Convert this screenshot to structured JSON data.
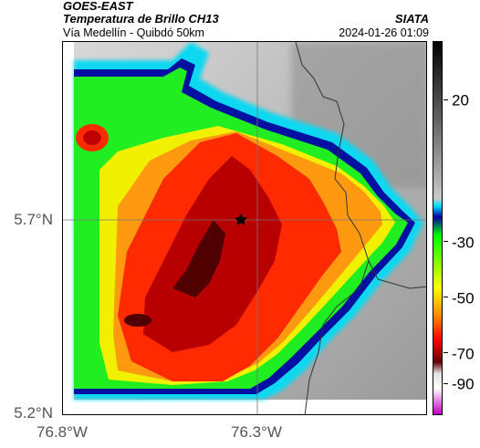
{
  "header": {
    "satellite": "GOES-EAST",
    "product": "Temperatura de Brillo CH13",
    "route": "Vía Medellín - Quibdó 50km",
    "organization": "SIATA",
    "timestamp": "2024-01-26 01:09"
  },
  "map": {
    "lat_labels": [
      "5.7°N",
      "5.2°N"
    ],
    "lon_labels": [
      "76.8°W",
      "76.3°W"
    ],
    "marker": "star-icon"
  },
  "colorbar": {
    "labels": [
      "20",
      "-30",
      "-50",
      "-70",
      "-90"
    ],
    "colors": {
      "black": "#000000",
      "gray": "#808080",
      "cyan": "#00e0ff",
      "blue": "#0000a0",
      "green": "#00ff00",
      "yellow": "#ffff00",
      "orange": "#ff8000",
      "red": "#ff0000",
      "darkred": "#600000",
      "magenta": "#c000c0"
    }
  }
}
